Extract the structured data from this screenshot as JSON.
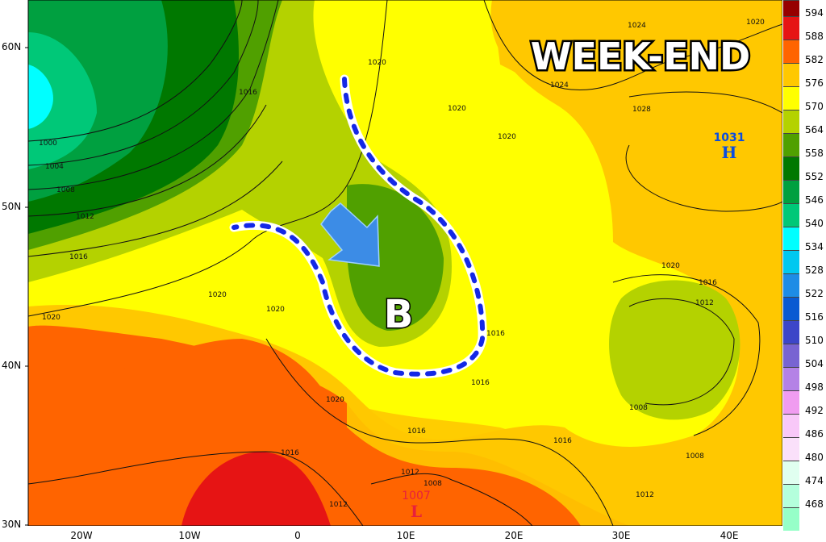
{
  "title": "WEEK-END",
  "trough_label": "B",
  "high": {
    "value": "1031",
    "letter": "H",
    "color": "#0a4de0"
  },
  "low": {
    "value": "1007",
    "letter": "L",
    "color": "#e8203c"
  },
  "lat_labels": [
    "60N",
    "50N",
    "40N",
    "30N"
  ],
  "lon_labels": [
    "20W",
    "10W",
    "0",
    "10E",
    "20E",
    "30E",
    "40E"
  ],
  "isobar_labels": [
    "1000",
    "1004",
    "1008",
    "1012",
    "1016",
    "1016",
    "1020",
    "1020",
    "1020",
    "1020",
    "1020",
    "1020",
    "1024",
    "1024",
    "1028",
    "1020",
    "1020",
    "1016",
    "1012",
    "1008",
    "1016",
    "1016",
    "1016",
    "1016",
    "1016",
    "1012",
    "1008",
    "1012",
    "1008",
    "1012",
    "1020",
    "1016"
  ],
  "legend": {
    "values": [
      "594",
      "588",
      "582",
      "576",
      "570",
      "564",
      "558",
      "552",
      "546",
      "540",
      "534",
      "528",
      "522",
      "516",
      "510",
      "504",
      "498",
      "492",
      "486",
      "480",
      "474",
      "468"
    ],
    "colors": [
      "#960000",
      "#e61414",
      "#ff6400",
      "#ffc800",
      "#ffff00",
      "#b4d200",
      "#50a000",
      "#007800",
      "#00a040",
      "#00c878",
      "#00ffff",
      "#00c8f0",
      "#1e8ce6",
      "#0a5ad2",
      "#3c46c8",
      "#7864d2",
      "#b482e6",
      "#f09cf0",
      "#f8c8f8",
      "#fae0fa",
      "#e0fff0",
      "#b4ffdc",
      "#96ffc8"
    ]
  },
  "trough_arrow_color": "#3c8ce6"
}
